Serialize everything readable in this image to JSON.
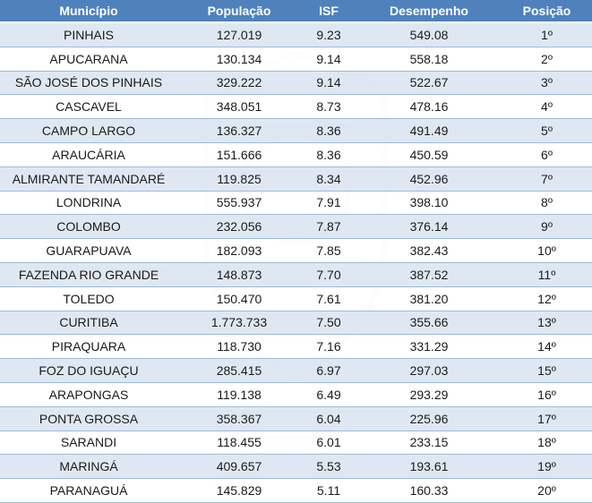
{
  "headers": [
    "Município",
    "População",
    "ISF",
    "Desempenho",
    "Posição"
  ],
  "rows": [
    [
      "PINHAIS",
      "127.019",
      "9.23",
      "549.08",
      "1º"
    ],
    [
      "APUCARANA",
      "130.134",
      "9.14",
      "558.18",
      "2º"
    ],
    [
      "SÃO JOSÉ DOS PINHAIS",
      "329.222",
      "9.14",
      "522.67",
      "3º"
    ],
    [
      "CASCAVEL",
      "348.051",
      "8.73",
      "478.16",
      "4º"
    ],
    [
      "CAMPO LARGO",
      "136.327",
      "8.36",
      "491.49",
      "5º"
    ],
    [
      "ARAUCÁRIA",
      "151.666",
      "8.36",
      "450.59",
      "6º"
    ],
    [
      "ALMIRANTE TAMANDARÉ",
      "119.825",
      "8.34",
      "452.96",
      "7º"
    ],
    [
      "LONDRINA",
      "555.937",
      "7.91",
      "398.10",
      "8º"
    ],
    [
      "COLOMBO",
      "232.056",
      "7.87",
      "376.14",
      "9º"
    ],
    [
      "GUARAPUAVA",
      "182.093",
      "7.85",
      "382.43",
      "10º"
    ],
    [
      "FAZENDA RIO GRANDE",
      "148.873",
      "7.70",
      "387.52",
      "11º"
    ],
    [
      "TOLEDO",
      "150.470",
      "7.61",
      "381.20",
      "12º"
    ],
    [
      "CURITIBA",
      "1.773.733",
      "7.50",
      "355.66",
      "13º"
    ],
    [
      "PIRAQUARA",
      "118.730",
      "7.16",
      "331.29",
      "14º"
    ],
    [
      "FOZ DO IGUAÇU",
      "285.415",
      "6.97",
      "297.03",
      "15º"
    ],
    [
      "ARAPONGAS",
      "119.138",
      "6.49",
      "293.29",
      "16º"
    ],
    [
      "PONTA GROSSA",
      "358.367",
      "6.04",
      "225.96",
      "17º"
    ],
    [
      "SARANDI",
      "118.455",
      "6.01",
      "233.15",
      "18º"
    ],
    [
      "MARINGÁ",
      "409.657",
      "5.53",
      "193.61",
      "19º"
    ],
    [
      "PARANAGUÁ",
      "145.829",
      "5.11",
      "160.33",
      "20º"
    ]
  ],
  "colors": {
    "header_bg": "#4f81bd",
    "row_alt_bg": "#dce6f1",
    "row_bg": "#ffffff"
  },
  "watermark_icon": "coat-of-arms-icon"
}
